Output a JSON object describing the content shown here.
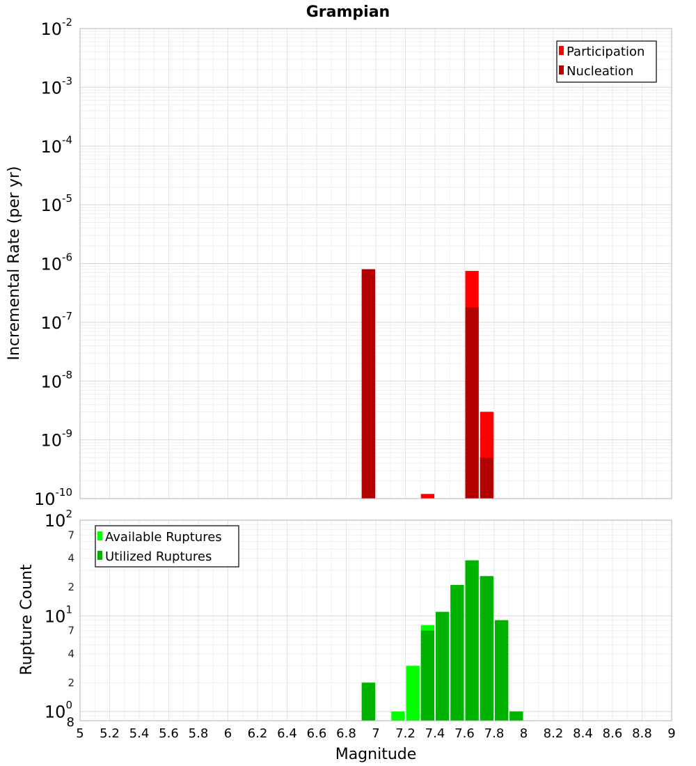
{
  "chart_data": [
    {
      "type": "bar",
      "title": "Grampian",
      "xlabel": "",
      "ylabel": "Incremental Rate (per yr)",
      "yscale": "log",
      "ylim": [
        1e-10,
        0.01
      ],
      "xlim": [
        5,
        9
      ],
      "grid": true,
      "legend_position": "top-right",
      "y_tick_labels": [
        {
          "base": "10",
          "exp": "-10"
        },
        {
          "base": "10",
          "exp": "-9"
        },
        {
          "base": "10",
          "exp": "-8"
        },
        {
          "base": "10",
          "exp": "-7"
        },
        {
          "base": "10",
          "exp": "-6"
        },
        {
          "base": "10",
          "exp": "-5"
        },
        {
          "base": "10",
          "exp": "-4"
        },
        {
          "base": "10",
          "exp": "-3"
        },
        {
          "base": "10",
          "exp": "-2"
        }
      ],
      "series": [
        {
          "name": "Participation",
          "color": "#ff0000",
          "x": [
            6.95,
            7.35,
            7.65,
            7.75
          ],
          "values": [
            8e-07,
            1.2e-10,
            7.5e-07,
            3e-09
          ]
        },
        {
          "name": "Nucleation",
          "color": "#b30000",
          "x": [
            6.95,
            7.65,
            7.75
          ],
          "values": [
            8e-07,
            1.8e-07,
            5e-10
          ]
        }
      ]
    },
    {
      "type": "bar",
      "xlabel": "Magnitude",
      "ylabel": "Rupture Count",
      "yscale": "log",
      "ylim": [
        0.8,
        100
      ],
      "xlim": [
        5,
        9
      ],
      "grid": true,
      "legend_position": "top-left",
      "x_ticks": [
        "5",
        "5.2",
        "5.4",
        "5.6",
        "5.8",
        "6",
        "6.2",
        "6.4",
        "6.6",
        "6.8",
        "7",
        "7.2",
        "7.4",
        "7.6",
        "7.8",
        "8",
        "8.2",
        "8.4",
        "8.6",
        "8.8",
        "9"
      ],
      "y_major_tick_labels": [
        {
          "base": "10",
          "exp": "0"
        },
        {
          "base": "10",
          "exp": "1"
        },
        {
          "base": "10",
          "exp": "2"
        }
      ],
      "y_minor_tick_labels": [
        "8",
        "2",
        "4",
        "7",
        "2",
        "4",
        "7"
      ],
      "series": [
        {
          "name": "Available Ruptures",
          "color": "#00ff00",
          "x": [
            6.95,
            7.15,
            7.25,
            7.35,
            7.45,
            7.55,
            7.65,
            7.75,
            7.85,
            7.95
          ],
          "values": [
            2,
            1,
            3,
            8,
            11,
            21,
            38,
            26,
            9,
            1
          ]
        },
        {
          "name": "Utilized Ruptures",
          "color": "#00b300",
          "x": [
            6.95,
            7.35,
            7.45,
            7.55,
            7.65,
            7.75,
            7.85,
            7.95
          ],
          "values": [
            2,
            7,
            11,
            21,
            38,
            26,
            9,
            1
          ]
        }
      ]
    }
  ]
}
